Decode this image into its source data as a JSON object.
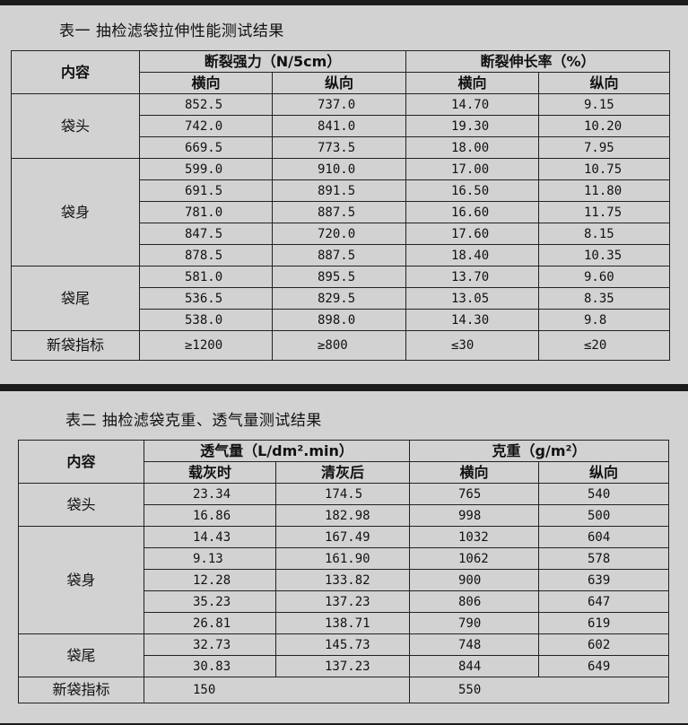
{
  "table1": {
    "title": "表一  抽检滤袋拉伸性能测试结果",
    "corner": "内容",
    "groups": [
      "断裂强力（N/5cm）",
      "断裂伸长率（%）"
    ],
    "subheaders": [
      "横向",
      "纵向",
      "横向",
      "纵向"
    ],
    "sections": [
      {
        "label": "袋头",
        "rows": [
          [
            "852.5",
            "737.0",
            "14.70",
            "9.15"
          ],
          [
            "742.0",
            "841.0",
            "19.30",
            "10.20"
          ],
          [
            "669.5",
            "773.5",
            "18.00",
            "7.95"
          ]
        ]
      },
      {
        "label": "袋身",
        "rows": [
          [
            "599.0",
            "910.0",
            "17.00",
            "10.75"
          ],
          [
            "691.5",
            "891.5",
            "16.50",
            "11.80"
          ],
          [
            "781.0",
            "887.5",
            "16.60",
            "11.75"
          ],
          [
            "847.5",
            "720.0",
            "17.60",
            "8.15"
          ],
          [
            "878.5",
            "887.5",
            "18.40",
            "10.35"
          ]
        ]
      },
      {
        "label": "袋尾",
        "rows": [
          [
            "581.0",
            "895.5",
            "13.70",
            "9.60"
          ],
          [
            "536.5",
            "829.5",
            "13.05",
            "8.35"
          ],
          [
            "538.0",
            "898.0",
            "14.30",
            "9.8"
          ]
        ]
      }
    ],
    "index_row": {
      "label": "新袋指标",
      "values": [
        "≥1200",
        "≥800",
        "≤30",
        "≤20"
      ]
    }
  },
  "table2": {
    "title": "表二  抽检滤袋克重、透气量测试结果",
    "corner": "内容",
    "groups": [
      "透气量（L/dm².min）",
      "克重（g/m²）"
    ],
    "subheaders": [
      "载灰时",
      "清灰后",
      "横向",
      "纵向"
    ],
    "sections": [
      {
        "label": "袋头",
        "rows": [
          [
            "23.34",
            "174.5",
            "765",
            "540"
          ],
          [
            "16.86",
            "182.98",
            "998",
            "500"
          ]
        ]
      },
      {
        "label": "袋身",
        "rows": [
          [
            "14.43",
            "167.49",
            "1032",
            "604"
          ],
          [
            "9.13",
            "161.90",
            "1062",
            "578"
          ],
          [
            "12.28",
            "133.82",
            "900",
            "639"
          ],
          [
            "35.23",
            "137.23",
            "806",
            "647"
          ],
          [
            "26.81",
            "138.71",
            "790",
            "619"
          ]
        ]
      },
      {
        "label": "袋尾",
        "rows": [
          [
            "32.73",
            "145.73",
            "748",
            "602"
          ],
          [
            "30.83",
            "137.23",
            "844",
            "649"
          ]
        ]
      }
    ],
    "index_row": {
      "label": "新袋指标",
      "values": [
        "150",
        "550"
      ]
    }
  }
}
